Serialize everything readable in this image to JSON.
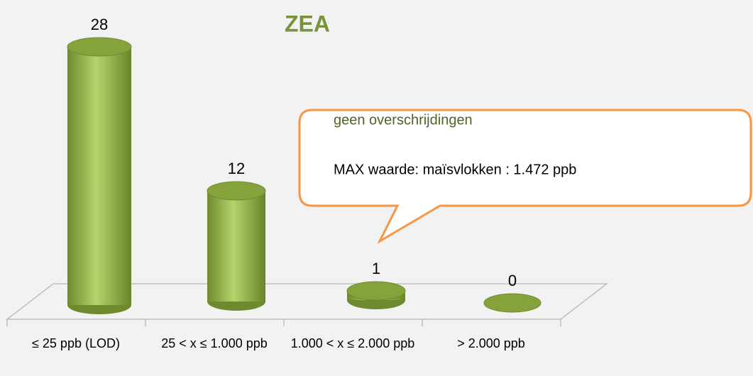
{
  "chart_data": {
    "type": "bar3d",
    "title": "ZEA",
    "categories": [
      "≤ 25 ppb (LOD)",
      "25 < x ≤ 1.000 ppb",
      "1.000 < x ≤ 2.000 ppb",
      "> 2.000 ppb"
    ],
    "values": [
      28,
      12,
      1,
      0
    ],
    "color": "#9bbb59",
    "annotation": {
      "lines": [
        "geen overschrijdingen",
        "MAX waarde: maïsvlokken : 1.472 ppb"
      ]
    }
  }
}
